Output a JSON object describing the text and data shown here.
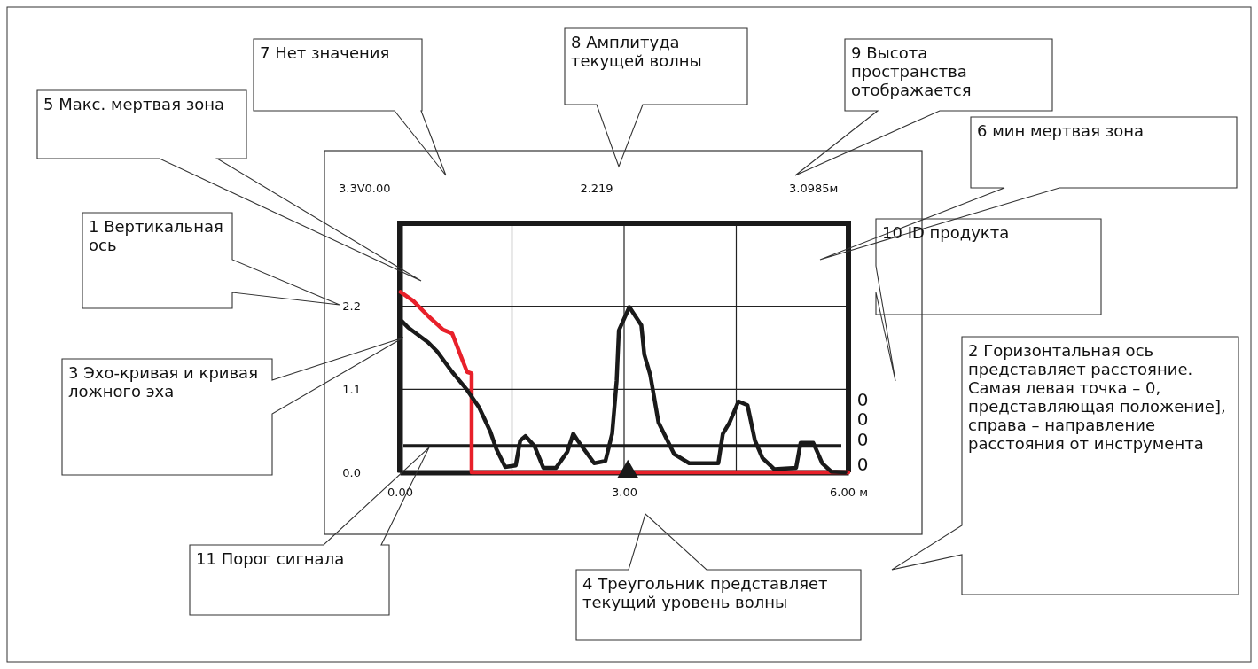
{
  "chart_data": {
    "type": "line",
    "xlim": [
      0,
      6
    ],
    "xticks": [
      {
        "value": 0,
        "label": "0.00"
      },
      {
        "value": 1.5,
        "label": null
      },
      {
        "value": 3,
        "label": "3.00"
      },
      {
        "value": 4.5,
        "label": null
      },
      {
        "value": 6,
        "label": "6.00 м"
      }
    ],
    "ylim": [
      0,
      3.3
    ],
    "yticks": [
      {
        "value": 0,
        "label": "0.0"
      },
      1.1,
      2.2
    ],
    "grid": true,
    "series": [
      {
        "color": "#e8202a",
        "x": [
          0.01,
          0.18,
          0.38,
          0.58,
          0.7,
          0.84,
          0.9,
          0.96,
          0.96,
          6
        ],
        "values": [
          2.39,
          2.27,
          2.07,
          1.89,
          1.84,
          1.48,
          1.33,
          1.31,
          0,
          0
        ]
      },
      {
        "color": "#1a1a1a",
        "x": [
          0.03,
          0.11,
          0.38,
          0.5,
          0.7,
          0.9,
          1.06,
          1.21,
          1.29,
          1.41,
          1.55,
          1.61,
          1.68,
          1.8,
          1.92,
          2.09,
          2.24,
          2.32,
          2.38,
          2.6,
          2.75,
          2.84,
          2.9,
          2.93,
          3.07,
          3.23,
          3.27,
          3.35,
          3.39,
          3.46,
          3.58,
          3.67,
          3.87,
          4.26,
          4.32,
          4.41,
          4.53,
          4.65,
          4.75,
          4.85,
          5.01,
          5.3,
          5.36,
          5.53,
          5.65,
          5.77,
          5.96
        ],
        "values": [
          2.0,
          1.92,
          1.72,
          1.6,
          1.33,
          1.09,
          0.86,
          0.54,
          0.31,
          0.07,
          0.09,
          0.42,
          0.48,
          0.35,
          0.06,
          0.06,
          0.27,
          0.51,
          0.42,
          0.12,
          0.15,
          0.51,
          1.21,
          1.88,
          2.19,
          1.95,
          1.56,
          1.29,
          1.06,
          0.66,
          0.42,
          0.24,
          0.12,
          0.12,
          0.51,
          0.66,
          0.94,
          0.89,
          0.42,
          0.19,
          0.04,
          0.06,
          0.39,
          0.39,
          0.12,
          0.01,
          0
        ]
      },
      {
        "type": "scatter",
        "marker": "triangle",
        "color": "#1a1a1a",
        "x": [
          3.05
        ],
        "values": [
          0
        ]
      }
    ],
    "ref_lines": [
      {
        "axis": "y",
        "value": 0.35,
        "color": "#1a1a1a"
      }
    ],
    "annotations": [
      "3.3V0.00",
      "2.219",
      "3.0985м",
      "0",
      "0",
      "0",
      "0",
      "1 Вертикальная ось",
      "2 Горизонтальная ось представляет расстояние. Самая левая точка – 0, представляющая положение], справа – направление расстояния от инструмента",
      "3 Эхо-кривая и кривая ложного эха",
      "4 Треугольник представляет текущий уровень волны",
      "5 Макс. мертвая зона",
      "6 мин мертвая зона",
      "7 Нет значения",
      "8 Амплитуда текущей волны",
      "9 Высота пространства отображается",
      "10 ID продукта",
      "11 Порог сигнала"
    ]
  }
}
